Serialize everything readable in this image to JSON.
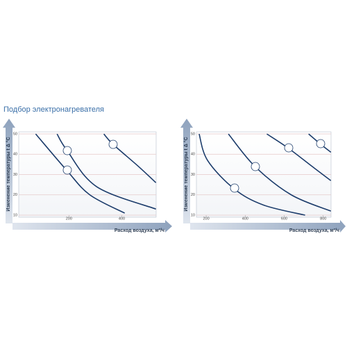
{
  "header": {
    "title": "Подбор электронагревателя"
  },
  "chart_data": [
    {
      "type": "line",
      "xlabel": "Расход воздуха, м³/ч",
      "ylabel": "Изменение температуры t Δ °C",
      "xlim": [
        10,
        530
      ],
      "ylim": [
        10,
        50
      ],
      "xticks": [
        200,
        400
      ],
      "yticks": [
        10,
        20,
        30,
        40,
        50
      ],
      "grid": true,
      "series": [
        {
          "color": "#1c3c6b",
          "x": [
            74,
            192,
            279,
            411
          ],
          "values": [
            50,
            32,
            20,
            11
          ]
        },
        {
          "color": "#1c3c6b",
          "x": [
            155,
            192,
            305,
            529
          ],
          "values": [
            50,
            42,
            24,
            13
          ]
        },
        {
          "color": "#1c3c6b",
          "x": [
            332,
            366,
            463,
            529
          ],
          "values": [
            50,
            45,
            34,
            26
          ]
        }
      ]
    },
    {
      "type": "line",
      "xlabel": "Расход воздуха, м³/ч",
      "ylabel": "Изменение температуры t Δ °C",
      "xlim": [
        150,
        840
      ],
      "ylim": [
        10,
        50
      ],
      "xticks": [
        200,
        400,
        600,
        800
      ],
      "yticks": [
        10,
        20,
        30,
        40,
        50
      ],
      "grid": true,
      "series": [
        {
          "color": "#1c3c6b",
          "x": [
            164,
            207,
            343,
            493,
            707
          ],
          "values": [
            50,
            37,
            23,
            15,
            10
          ]
        },
        {
          "color": "#1c3c6b",
          "x": [
            314,
            450,
            636,
            839
          ],
          "values": [
            50,
            34,
            20,
            12
          ]
        },
        {
          "color": "#1c3c6b",
          "x": [
            511,
            621,
            743,
            839
          ],
          "values": [
            50,
            43,
            34,
            27
          ]
        },
        {
          "color": "#1c3c6b",
          "x": [
            725,
            786,
            839
          ],
          "values": [
            50,
            45,
            41
          ]
        }
      ]
    }
  ]
}
